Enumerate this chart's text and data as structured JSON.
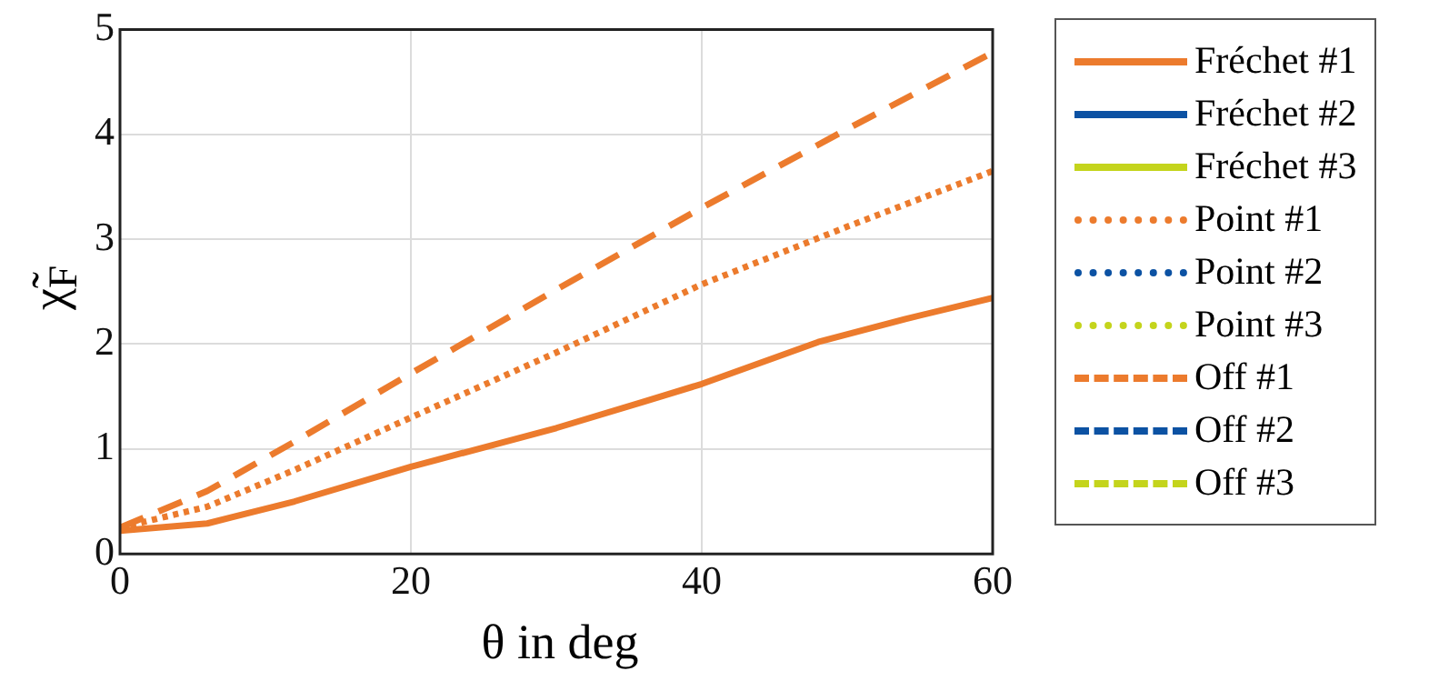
{
  "chart_data": {
    "type": "line",
    "xlabel": "θ in deg",
    "ylabel": "χ̃$_{F}$",
    "xlim": [
      0,
      60
    ],
    "xticks": [
      0,
      20,
      40,
      60
    ],
    "ylim": [
      0,
      5
    ],
    "yticks": [
      0,
      1,
      2,
      3,
      4,
      5
    ],
    "grid": true,
    "legend": "right",
    "marker": "none",
    "series": [
      {
        "name": "Fréchet #1",
        "color": "#ec7b2d",
        "line_style": "solid",
        "x": [
          0,
          6,
          12,
          20,
          30,
          36,
          40,
          48,
          54,
          60
        ],
        "values": [
          0.22,
          0.29,
          0.5,
          0.83,
          1.2,
          1.45,
          1.62,
          2.02,
          2.24,
          2.44
        ]
      },
      {
        "name": "Fréchet #2",
        "color": "#0c52a3",
        "line_style": "solid"
      },
      {
        "name": "Fréchet #3",
        "color": "#c4d41c",
        "line_style": "solid"
      },
      {
        "name": "Point #1",
        "color": "#ec7b2d",
        "line_style": "dotted",
        "x": [
          0,
          6,
          12,
          20,
          30,
          40,
          50,
          60
        ],
        "values": [
          0.25,
          0.45,
          0.8,
          1.3,
          1.92,
          2.57,
          3.12,
          3.65
        ]
      },
      {
        "name": "Point #2",
        "color": "#0c52a3",
        "line_style": "dotted"
      },
      {
        "name": "Point #3",
        "color": "#c4d41c",
        "line_style": "dotted"
      },
      {
        "name": "Off #1",
        "color": "#ec7b2d",
        "line_style": "dashed",
        "x": [
          0,
          6,
          12,
          20,
          30,
          40,
          50,
          60
        ],
        "values": [
          0.25,
          0.6,
          1.07,
          1.72,
          2.52,
          3.3,
          4.05,
          4.78
        ]
      },
      {
        "name": "Off #2",
        "color": "#0c52a3",
        "line_style": "dashed"
      },
      {
        "name": "Off #3",
        "color": "#c4d41c",
        "line_style": "dashed"
      }
    ]
  }
}
